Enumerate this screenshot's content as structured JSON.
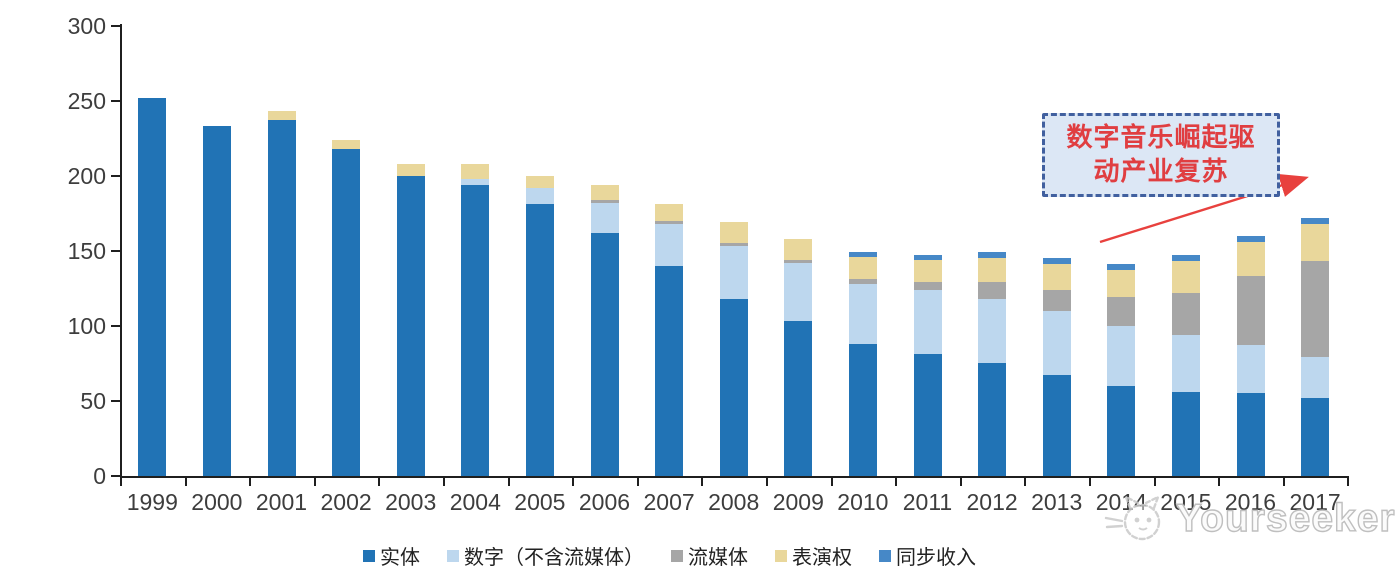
{
  "chart_data": {
    "type": "bar",
    "stacked": true,
    "title": "",
    "xlabel": "",
    "ylabel": "",
    "categories": [
      "1999",
      "2000",
      "2001",
      "2002",
      "2003",
      "2004",
      "2005",
      "2006",
      "2007",
      "2008",
      "2009",
      "2010",
      "2011",
      "2012",
      "2013",
      "2014",
      "2015",
      "2016",
      "2017"
    ],
    "series": [
      {
        "name": "实体",
        "color": "#2173b5",
        "values": [
          252,
          233,
          237,
          218,
          200,
          194,
          181,
          162,
          140,
          118,
          103,
          88,
          81,
          75,
          67,
          60,
          56,
          55,
          52
        ]
      },
      {
        "name": "数字（不含流媒体）",
        "color": "#bdd7ee",
        "values": [
          0,
          0,
          0,
          0,
          0,
          4,
          11,
          20,
          28,
          35,
          39,
          40,
          43,
          43,
          43,
          40,
          38,
          32,
          27
        ]
      },
      {
        "name": "流媒体",
        "color": "#a6a6a6",
        "values": [
          0,
          0,
          0,
          0,
          0,
          0,
          0,
          2,
          2,
          2,
          2,
          3,
          5,
          11,
          14,
          19,
          28,
          46,
          64
        ]
      },
      {
        "name": "表演权",
        "color": "#e9d79b",
        "values": [
          0,
          0,
          6,
          6,
          8,
          10,
          8,
          10,
          11,
          14,
          14,
          15,
          15,
          16,
          17,
          18,
          21,
          23,
          25
        ]
      },
      {
        "name": "同步收入",
        "color": "#4688c7",
        "values": [
          0,
          0,
          0,
          0,
          0,
          0,
          0,
          0,
          0,
          0,
          0,
          3,
          3,
          4,
          4,
          4,
          4,
          4,
          4
        ]
      }
    ],
    "ylim": [
      0,
      300
    ],
    "yticks": [
      0,
      50,
      100,
      150,
      200,
      250,
      300
    ],
    "grid": false,
    "legend_position": "bottom",
    "axis_color": "#1f1f1f",
    "tick_label_color": "#3d3d3d"
  },
  "annotation": {
    "line1": "数字音乐崛起驱",
    "line2": "动产业复苏",
    "text_color": "#e03e41",
    "fill_color": "#dce7f5",
    "border_color": "#41609f",
    "arrow_color": "#e8413e"
  },
  "watermark": {
    "text": "Yourseeker",
    "logo": "cat-icon"
  }
}
